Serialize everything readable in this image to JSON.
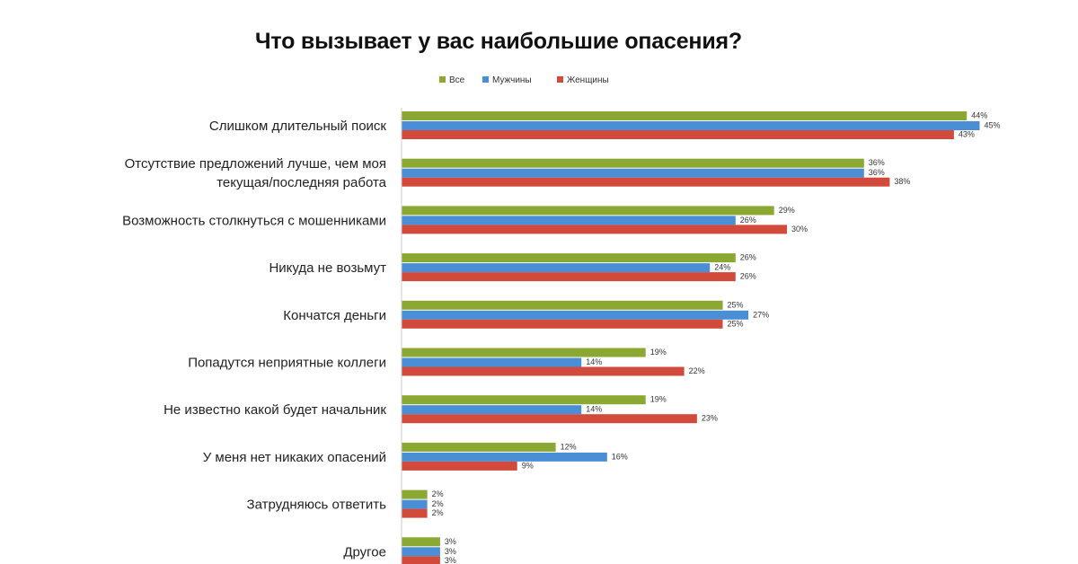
{
  "chart_data": {
    "type": "bar",
    "orientation": "horizontal",
    "title": "Что вызывает у вас наибольшие опасения?",
    "xlabel": "",
    "ylabel": "",
    "xlim": [
      0,
      45
    ],
    "grid": false,
    "legend_position": "top",
    "value_suffix": "%",
    "categories": [
      [
        "Слишком длительный поиск"
      ],
      [
        "Отсутствие предложений лучше, чем моя",
        "текущая/последняя работа"
      ],
      [
        "Возможность столкнуться с мошенниками"
      ],
      [
        "Никуда не возьмут"
      ],
      [
        "Кончатся деньги"
      ],
      [
        "Попадутся неприятные коллеги"
      ],
      [
        "Не известно какой будет начальник"
      ],
      [
        "У меня нет никаких опасений"
      ],
      [
        "Затрудняюсь ответить"
      ],
      [
        "Другое"
      ]
    ],
    "series": [
      {
        "name": "Все",
        "color": "#8aa832",
        "values": [
          44,
          36,
          29,
          26,
          25,
          19,
          19,
          12,
          2,
          3
        ]
      },
      {
        "name": "Мужчины",
        "color": "#4a8fd6",
        "values": [
          45,
          36,
          26,
          24,
          27,
          14,
          14,
          16,
          2,
          3
        ]
      },
      {
        "name": "Женщины",
        "color": "#d24a3c",
        "values": [
          43,
          38,
          30,
          26,
          25,
          22,
          23,
          9,
          2,
          3
        ]
      }
    ]
  }
}
